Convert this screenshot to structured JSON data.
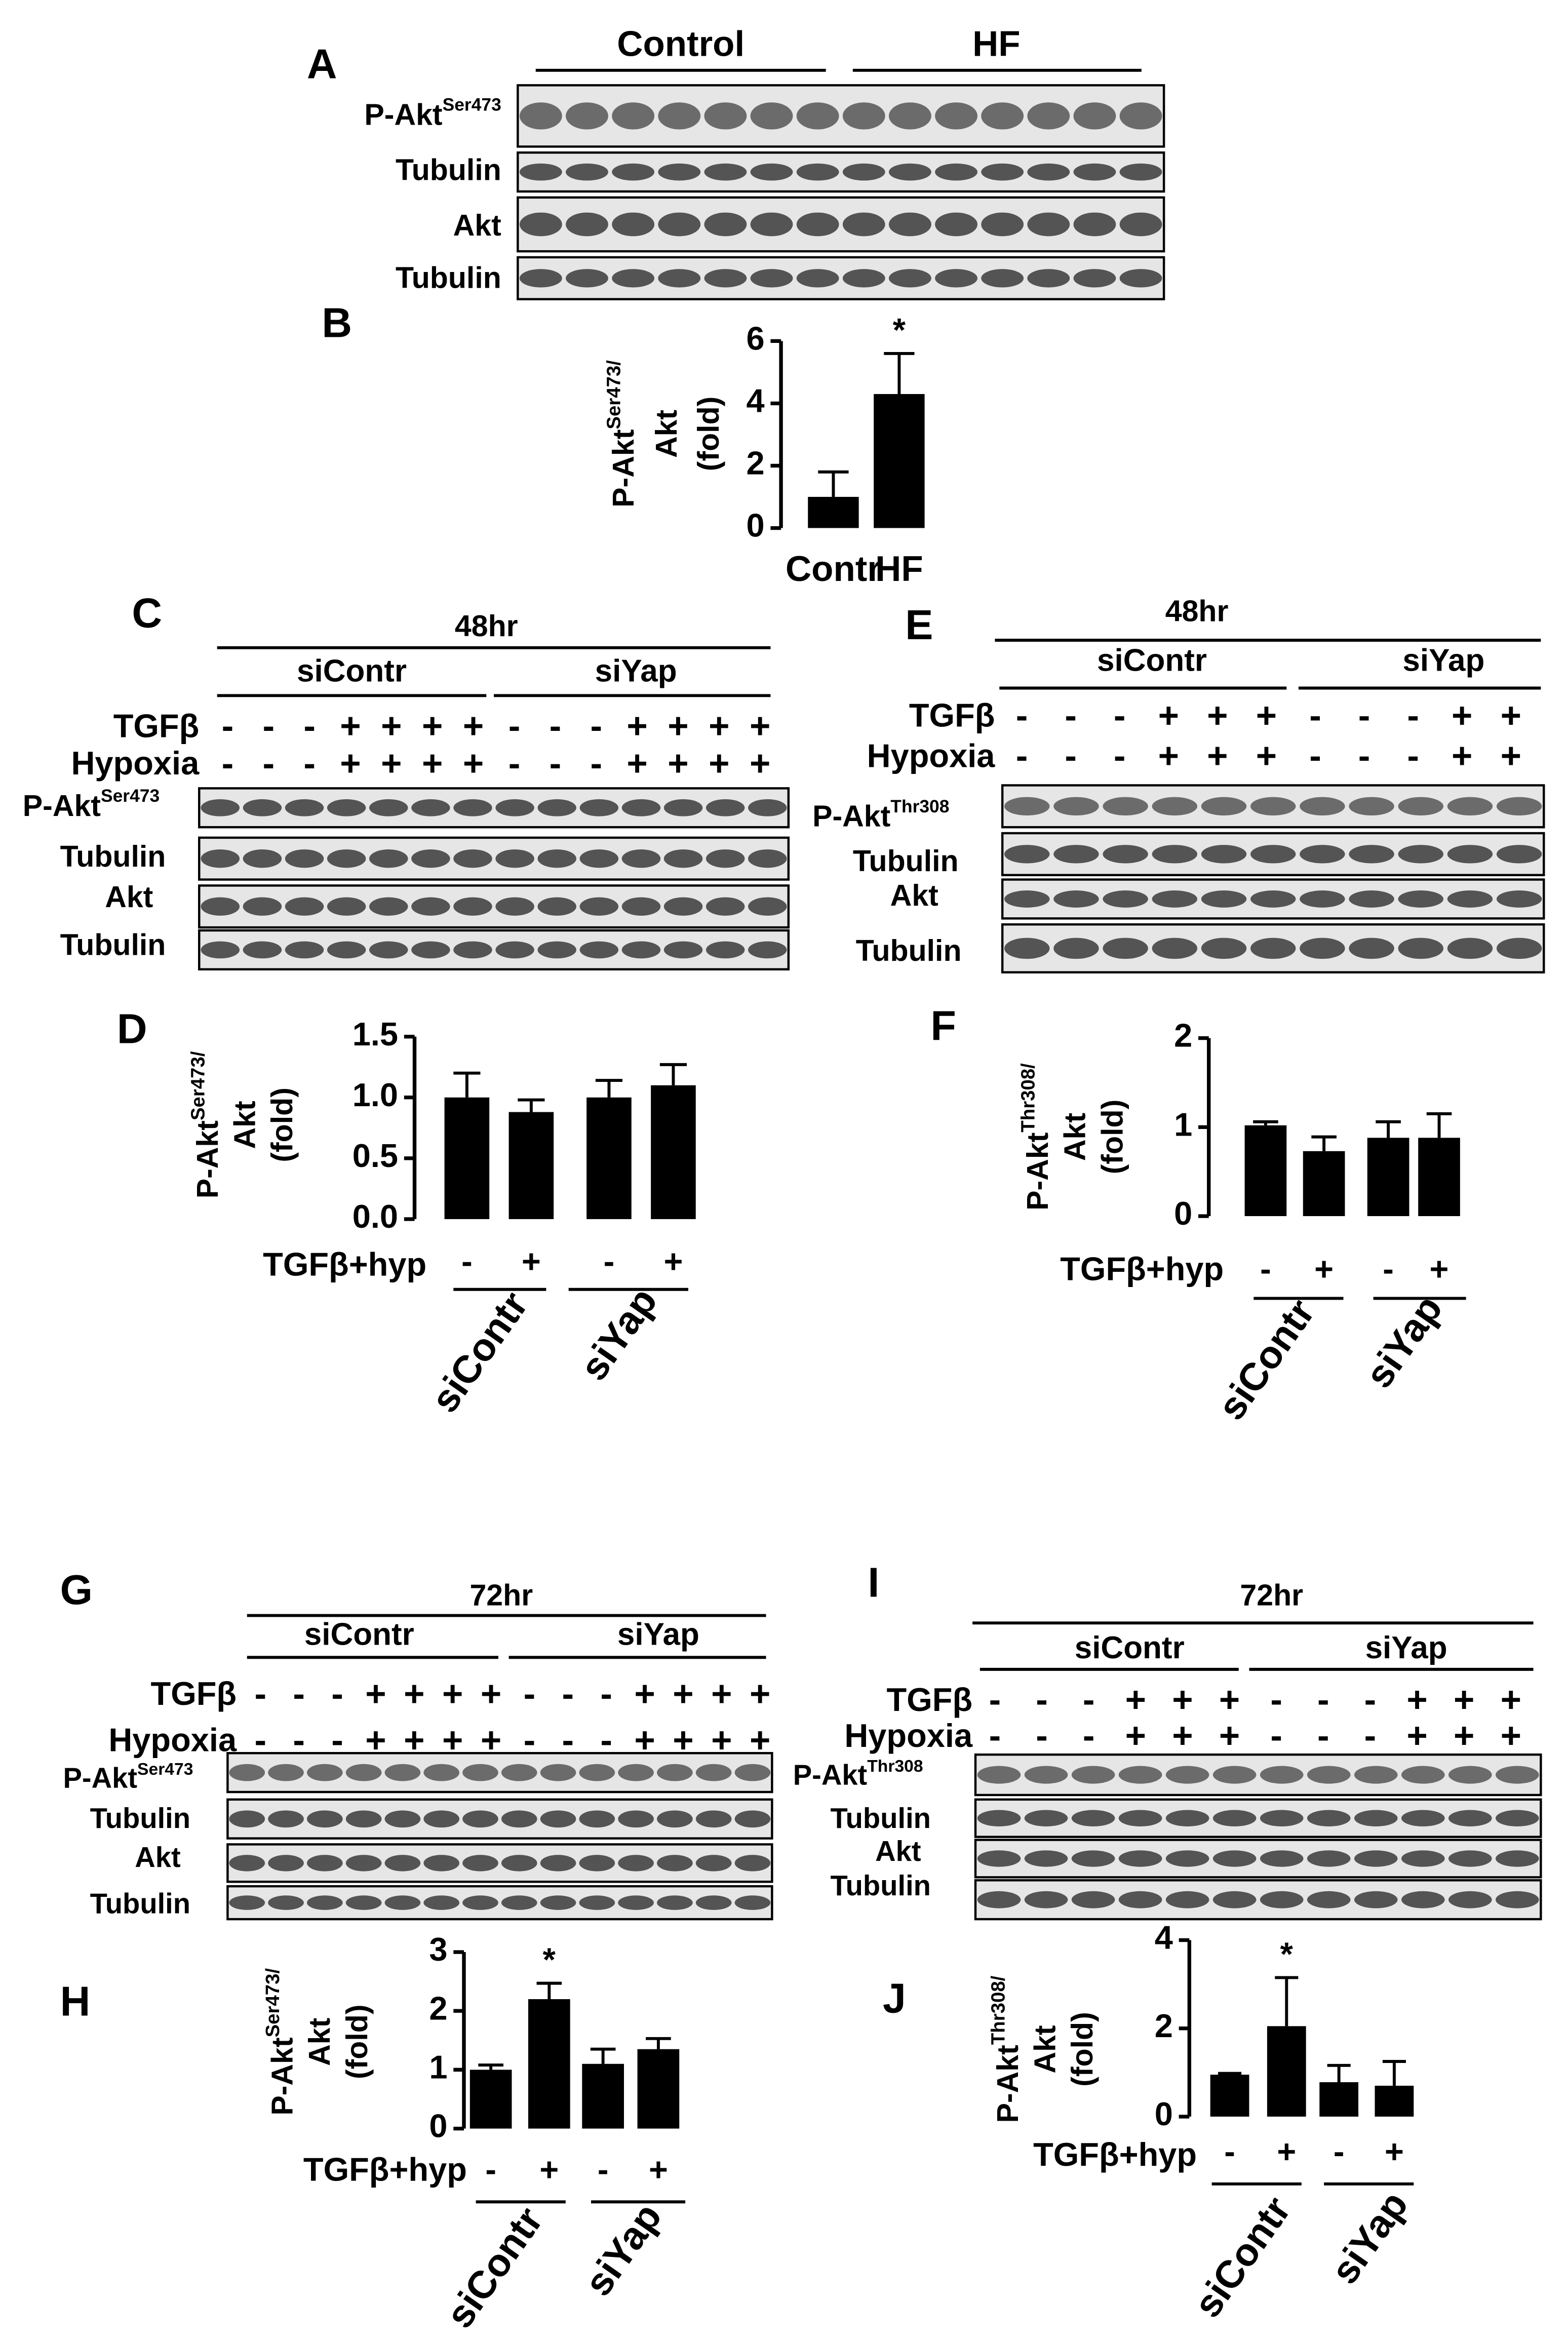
{
  "chart_data": [
    {
      "type": "bar",
      "panel": "B",
      "categories": [
        "Contr",
        "HF"
      ],
      "values": [
        1.0,
        4.3
      ],
      "errors": [
        0.8,
        1.3
      ],
      "color": "#000000",
      "ylim": [
        0,
        6
      ],
      "yticks": [
        0,
        2,
        4,
        6
      ],
      "ylabel": {
        "main": "P-Akt",
        "sup": "Ser473/"
      },
      "ylabel2": "Akt",
      "ylabel3": "(fold)",
      "annotations": [
        {
          "text": "*",
          "x": 1
        }
      ]
    },
    {
      "type": "bar",
      "panel": "D",
      "categories": [
        "-",
        "+",
        "-",
        "+"
      ],
      "row_label": "TGFβ+hyp",
      "group_labels": [
        "siContr",
        "siYap"
      ],
      "values": [
        1.0,
        0.88,
        1.0,
        1.1
      ],
      "errors": [
        0.2,
        0.1,
        0.14,
        0.17
      ],
      "color": "#000000",
      "ylim": [
        0,
        1.5
      ],
      "yticks": [
        {
          "value": 0,
          "label": "0.0"
        },
        0.5,
        {
          "value": 1,
          "label": "1.0"
        },
        1.5
      ],
      "ylabel": {
        "main": "P-Akt",
        "sup": "Ser473/"
      },
      "ylabel2": "Akt",
      "ylabel3": "(fold)"
    },
    {
      "type": "bar",
      "panel": "F",
      "categories": [
        "-",
        "+",
        "-",
        "+"
      ],
      "row_label": "TGFβ+hyp",
      "group_labels": [
        "siContr",
        "siYap"
      ],
      "values": [
        1.02,
        0.73,
        0.88,
        0.88
      ],
      "errors": [
        0.04,
        0.16,
        0.18,
        0.27
      ],
      "color": "#000000",
      "ylim": [
        0,
        2
      ],
      "yticks": [
        0,
        1,
        2
      ],
      "ylabel": {
        "main": "P-Akt",
        "sup": "Thr308/"
      },
      "ylabel2": "Akt",
      "ylabel3": "(fold)"
    },
    {
      "type": "bar",
      "panel": "H",
      "categories": [
        "-",
        "+",
        "-",
        "+"
      ],
      "row_label": "TGFβ+hyp",
      "group_labels": [
        "siContr",
        "siYap"
      ],
      "values": [
        1.0,
        2.2,
        1.1,
        1.35
      ],
      "errors": [
        0.08,
        0.27,
        0.25,
        0.18
      ],
      "color": "#000000",
      "ylim": [
        0,
        3
      ],
      "yticks": [
        0,
        1,
        2,
        3
      ],
      "ylabel": {
        "main": "P-Akt",
        "sup": "Ser473/"
      },
      "ylabel2": "Akt",
      "ylabel3": "(fold)",
      "annotations": [
        {
          "text": "*",
          "x": 1
        }
      ]
    },
    {
      "type": "bar",
      "panel": "J",
      "categories": [
        "-",
        "+",
        "-",
        "+"
      ],
      "row_label": "TGFβ+hyp",
      "group_labels": [
        "siContr",
        "siYap"
      ],
      "values": [
        0.95,
        2.05,
        0.78,
        0.7
      ],
      "errors": [
        0.03,
        1.1,
        0.38,
        0.55
      ],
      "color": "#000000",
      "ylim": [
        0,
        4
      ],
      "yticks": [
        0,
        2,
        4
      ],
      "ylabel": {
        "main": "P-Akt",
        "sup": "Thr308/"
      },
      "ylabel2": "Akt",
      "ylabel3": "(fold)",
      "annotations": [
        {
          "text": "*",
          "x": 1
        }
      ]
    }
  ],
  "blots": [
    {
      "panel": "A",
      "groups": [
        "Control",
        "HF"
      ],
      "rows": [
        {
          "label": "P-Akt",
          "sup": "Ser473"
        },
        {
          "label": "Tubulin"
        },
        {
          "label": "Akt"
        },
        {
          "label": "Tubulin"
        }
      ]
    },
    {
      "panel": "C",
      "time": "48hr",
      "groups": [
        "siContr",
        "siYap"
      ],
      "treatments": [
        {
          "label": "TGFβ",
          "signs": [
            "-",
            "-",
            "-",
            "+",
            "+",
            "+",
            "+",
            "-",
            "-",
            "-",
            "+",
            "+",
            "+",
            "+"
          ]
        },
        {
          "label": "Hypoxia",
          "signs": [
            "-",
            "-",
            "-",
            "+",
            "+",
            "+",
            "+",
            "-",
            "-",
            "-",
            "+",
            "+",
            "+",
            "+"
          ]
        }
      ],
      "rows": [
        {
          "label": "P-Akt",
          "sup": "Ser473"
        },
        {
          "label": "Tubulin"
        },
        {
          "label": "Akt"
        },
        {
          "label": "Tubulin"
        }
      ]
    },
    {
      "panel": "E",
      "time": "48hr",
      "groups": [
        "siContr",
        "siYap"
      ],
      "treatments": [
        {
          "label": "TGFβ",
          "signs": [
            "-",
            "-",
            "-",
            "+",
            "+",
            "+",
            "-",
            "-",
            "-",
            "+",
            "+"
          ]
        },
        {
          "label": "Hypoxia",
          "signs": [
            "-",
            "-",
            "-",
            "+",
            "+",
            "+",
            "-",
            "-",
            "-",
            "+",
            "+"
          ]
        }
      ],
      "rows": [
        {
          "label": "P-Akt",
          "sup": "Thr308"
        },
        {
          "label": "Tubulin"
        },
        {
          "label": "Akt"
        },
        {
          "label": "Tubulin"
        }
      ]
    },
    {
      "panel": "G",
      "time": "72hr",
      "groups": [
        "siContr",
        "siYap"
      ],
      "treatments": [
        {
          "label": "TGFβ",
          "signs": [
            "-",
            "-",
            "-",
            "+",
            "+",
            "+",
            "+",
            "-",
            "-",
            "-",
            "+",
            "+",
            "+",
            "+"
          ]
        },
        {
          "label": "Hypoxia",
          "signs": [
            "-",
            "-",
            "-",
            "+",
            "+",
            "+",
            "+",
            "-",
            "-",
            "-",
            "+",
            "+",
            "+",
            "+"
          ]
        }
      ],
      "rows": [
        {
          "label": "P-Akt",
          "sup": "Ser473"
        },
        {
          "label": "Tubulin"
        },
        {
          "label": "Akt"
        },
        {
          "label": "Tubulin"
        }
      ]
    },
    {
      "panel": "I",
      "time": "72hr",
      "groups": [
        "siContr",
        "siYap"
      ],
      "treatments": [
        {
          "label": "TGFβ",
          "signs": [
            "-",
            "-",
            "-",
            "+",
            "+",
            "+",
            "-",
            "-",
            "-",
            "+",
            "+",
            "+"
          ]
        },
        {
          "label": "Hypoxia",
          "signs": [
            "-",
            "-",
            "-",
            "+",
            "+",
            "+",
            "-",
            "-",
            "-",
            "+",
            "+",
            "+"
          ]
        }
      ],
      "rows": [
        {
          "label": "P-Akt",
          "sup": "Thr308"
        },
        {
          "label": "Tubulin"
        },
        {
          "label": "Akt"
        },
        {
          "label": "Tubulin"
        }
      ]
    }
  ]
}
